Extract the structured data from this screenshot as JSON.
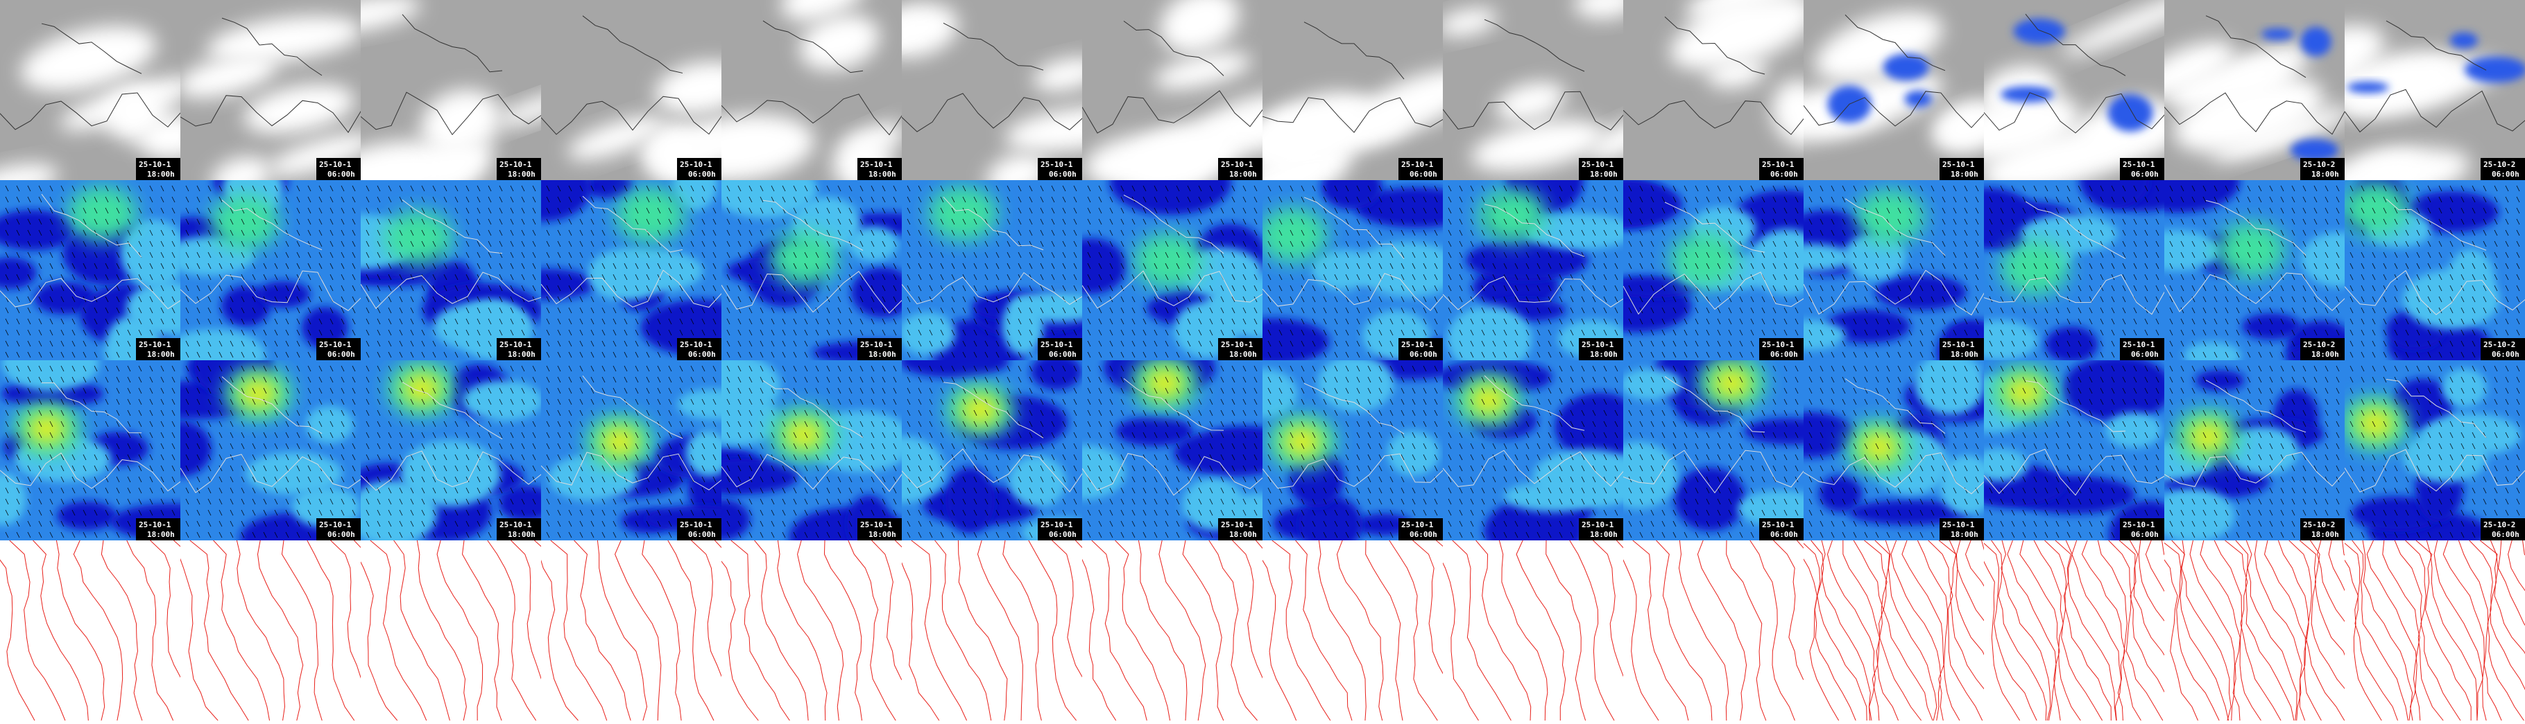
{
  "rows": [
    {
      "cells": [
        {
          "date": "25-10-1",
          "time": "18:00h"
        },
        {
          "date": "25-10-1",
          "time": "06:00h"
        },
        {
          "date": "25-10-1",
          "time": "18:00h"
        },
        {
          "date": "25-10-1",
          "time": "06:00h"
        },
        {
          "date": "25-10-1",
          "time": "18:00h"
        },
        {
          "date": "25-10-1",
          "time": "06:00h"
        },
        {
          "date": "25-10-1",
          "time": "18:00h"
        },
        {
          "date": "25-10-1",
          "time": "06:00h"
        },
        {
          "date": "25-10-1",
          "time": "18:00h"
        },
        {
          "date": "25-10-1",
          "time": "06:00h"
        },
        {
          "date": "25-10-1",
          "time": "18:00h"
        },
        {
          "date": "25-10-1",
          "time": "06:00h"
        },
        {
          "date": "25-10-2",
          "time": "18:00h"
        },
        {
          "date": "25-10-2",
          "time": "06:00h"
        }
      ]
    },
    {
      "cells": [
        {
          "date": "25-10-1",
          "time": "18:00h"
        },
        {
          "date": "25-10-1",
          "time": "06:00h"
        },
        {
          "date": "25-10-1",
          "time": "18:00h"
        },
        {
          "date": "25-10-1",
          "time": "06:00h"
        },
        {
          "date": "25-10-1",
          "time": "18:00h"
        },
        {
          "date": "25-10-1",
          "time": "06:00h"
        },
        {
          "date": "25-10-1",
          "time": "18:00h"
        },
        {
          "date": "25-10-1",
          "time": "06:00h"
        },
        {
          "date": "25-10-1",
          "time": "18:00h"
        },
        {
          "date": "25-10-1",
          "time": "06:00h"
        },
        {
          "date": "25-10-1",
          "time": "18:00h"
        },
        {
          "date": "25-10-1",
          "time": "06:00h"
        },
        {
          "date": "25-10-2",
          "time": "18:00h"
        },
        {
          "date": "25-10-2",
          "time": "06:00h"
        }
      ]
    },
    {
      "cells": [
        {
          "date": "25-10-1",
          "time": "18:00h"
        },
        {
          "date": "25-10-1",
          "time": "06:00h"
        },
        {
          "date": "25-10-1",
          "time": "18:00h"
        },
        {
          "date": "25-10-1",
          "time": "06:00h"
        },
        {
          "date": "25-10-1",
          "time": "18:00h"
        },
        {
          "date": "25-10-1",
          "time": "06:00h"
        },
        {
          "date": "25-10-1",
          "time": "18:00h"
        },
        {
          "date": "25-10-1",
          "time": "06:00h"
        },
        {
          "date": "25-10-1",
          "time": "18:00h"
        },
        {
          "date": "25-10-1",
          "time": "06:00h"
        },
        {
          "date": "25-10-1",
          "time": "18:00h"
        },
        {
          "date": "25-10-1",
          "time": "06:00h"
        },
        {
          "date": "25-10-2",
          "time": "18:00h"
        },
        {
          "date": "25-10-2",
          "time": "06:00h"
        }
      ]
    }
  ]
}
